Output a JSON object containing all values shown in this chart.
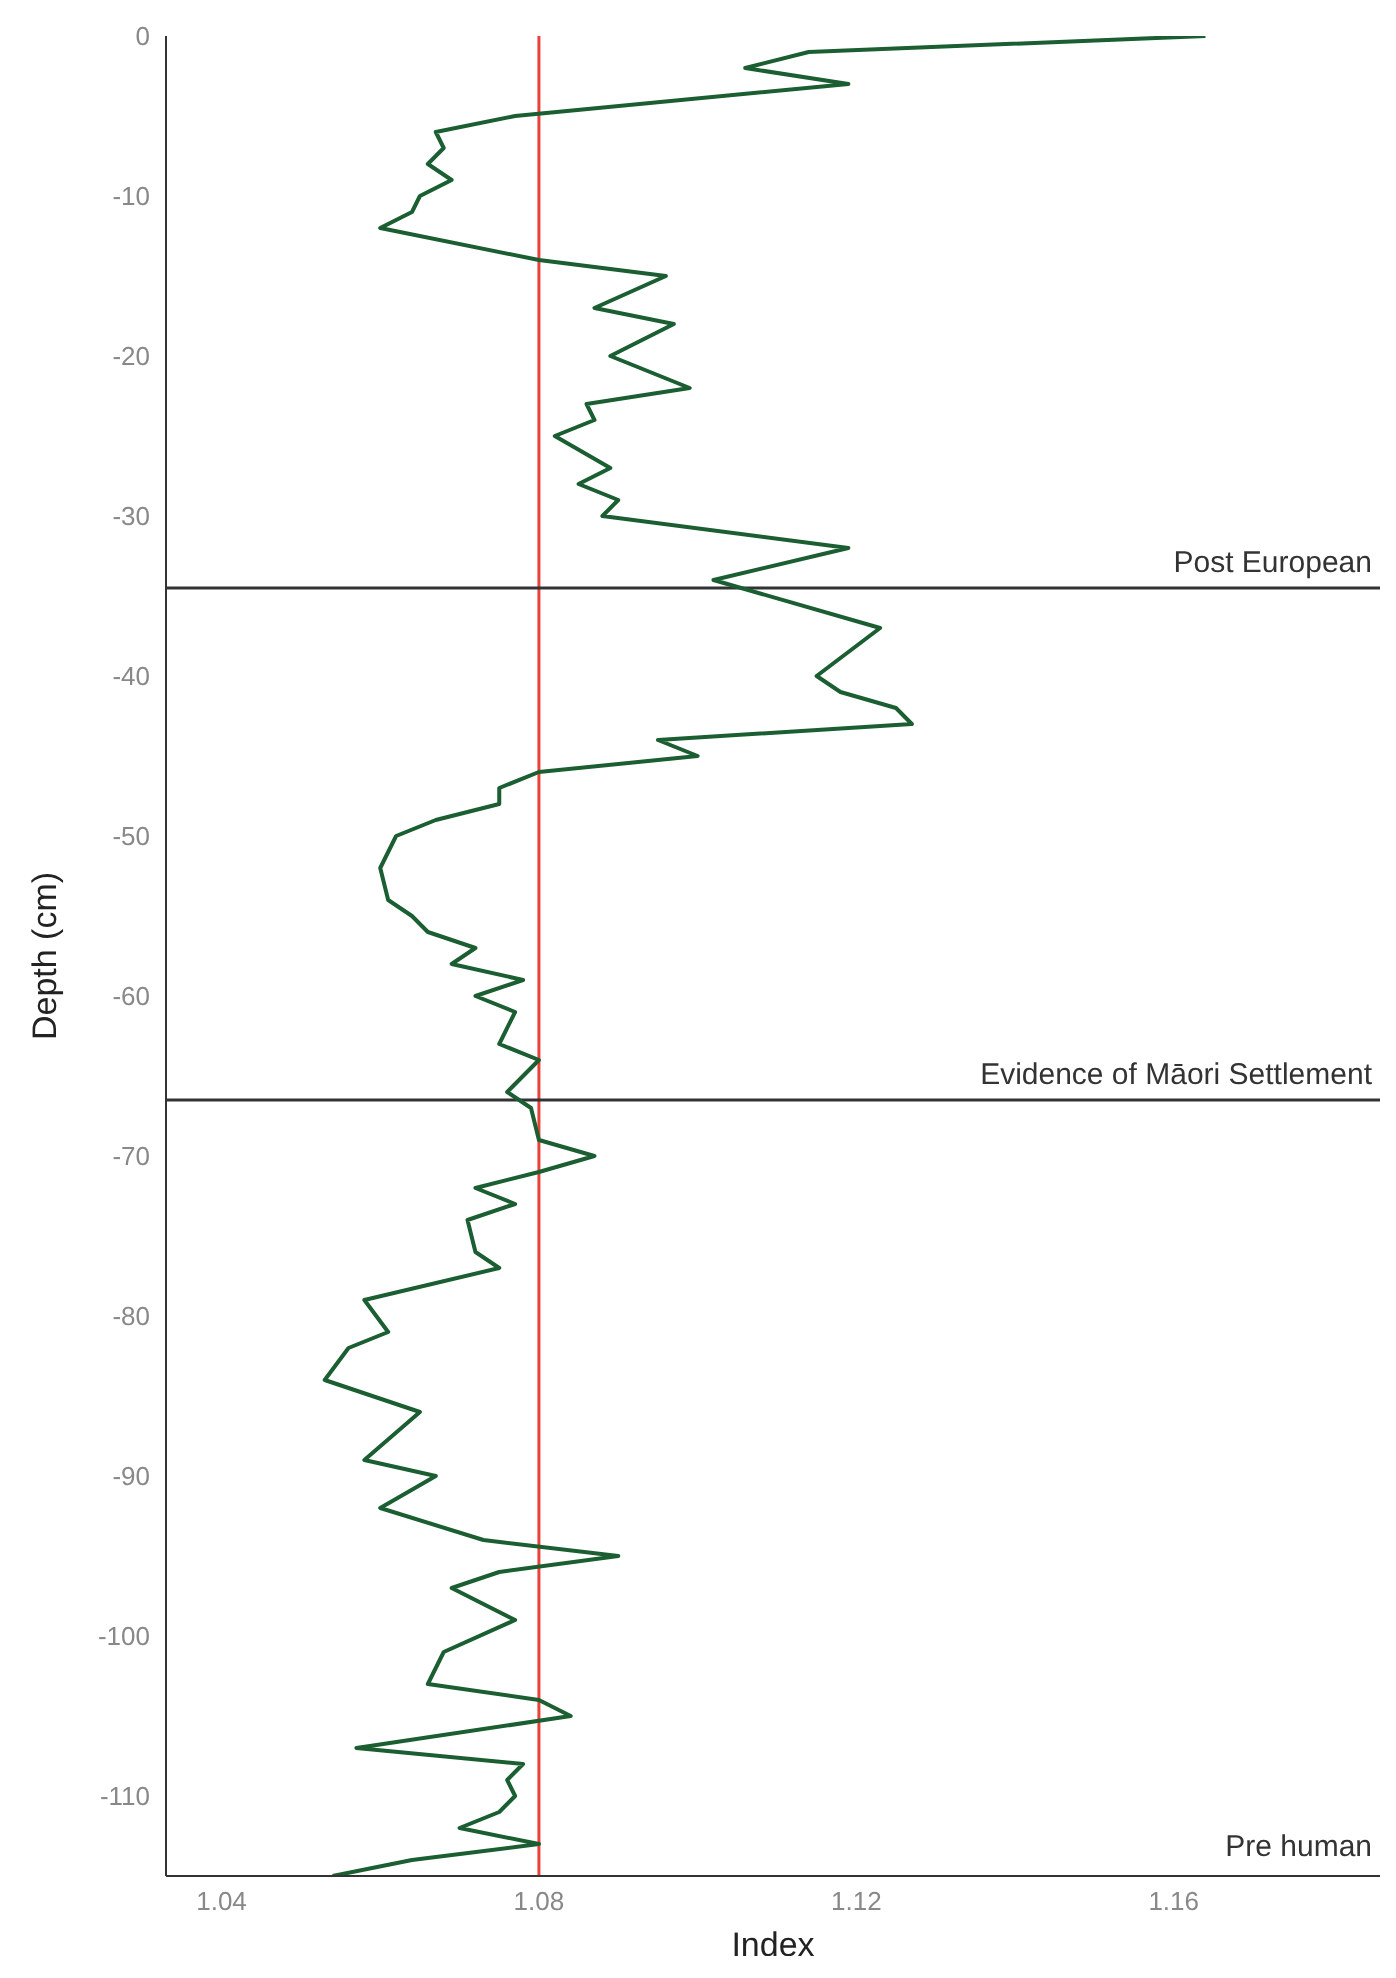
{
  "chart_data": {
    "type": "line",
    "xlabel": "Index",
    "ylabel": "Depth (cm)",
    "x": [
      1.164,
      1.114,
      1.106,
      1.119,
      1.077,
      1.067,
      1.068,
      1.066,
      1.069,
      1.065,
      1.064,
      1.06,
      1.08,
      1.096,
      1.087,
      1.097,
      1.089,
      1.099,
      1.086,
      1.087,
      1.082,
      1.089,
      1.085,
      1.09,
      1.088,
      1.119,
      1.102,
      1.123,
      1.115,
      1.118,
      1.125,
      1.127,
      1.095,
      1.1,
      1.08,
      1.075,
      1.075,
      1.067,
      1.062,
      1.06,
      1.061,
      1.064,
      1.066,
      1.072,
      1.069,
      1.078,
      1.072,
      1.077,
      1.075,
      1.08,
      1.076,
      1.079,
      1.08,
      1.087,
      1.08,
      1.072,
      1.077,
      1.071,
      1.072,
      1.075,
      1.058,
      1.061,
      1.056,
      1.053,
      1.065,
      1.058,
      1.067,
      1.06,
      1.073,
      1.09,
      1.075,
      1.069,
      1.077,
      1.068,
      1.066,
      1.08,
      1.084,
      1.057,
      1.078,
      1.076,
      1.077,
      1.075,
      1.07,
      1.08,
      1.064,
      1.054
    ],
    "series": [
      {
        "color": "#1a5e32",
        "values": [
          0,
          -1,
          -2,
          -3,
          -5,
          -6,
          -7,
          -8,
          -9,
          -10,
          -11,
          -12,
          -14,
          -15,
          -17,
          -18,
          -20,
          -22,
          -23,
          -24,
          -25,
          -27,
          -28,
          -29,
          -30,
          -32,
          -34,
          -37,
          -40,
          -41,
          -42,
          -43,
          -44,
          -45,
          -46,
          -47,
          -48,
          -49,
          -50,
          -52,
          -54,
          -55,
          -56,
          -57,
          -58,
          -59,
          -60,
          -61,
          -63,
          -64,
          -66,
          -67,
          -69,
          -70,
          -71,
          -72,
          -73,
          -74,
          -76,
          -77,
          -79,
          -81,
          -82,
          -84,
          -86,
          -89,
          -90,
          -92,
          -94,
          -95,
          -96,
          -97,
          -99,
          -101,
          -103,
          -104,
          -105,
          -107,
          -108,
          -109,
          -110,
          -111,
          -112,
          -113,
          -114,
          -115
        ]
      }
    ],
    "xlim": [
      1.033,
      1.186
    ],
    "xticks": [
      1.04,
      1.08,
      1.12,
      1.16
    ],
    "ylim": [
      -115,
      0
    ],
    "yticks": [
      0,
      -10,
      -20,
      -30,
      -40,
      -50,
      -60,
      -70,
      -80,
      -90,
      -100,
      -110
    ],
    "ref_lines": [
      {
        "axis": "x",
        "value": 1.08,
        "color": "#e8423a"
      },
      {
        "axis": "y",
        "value": -34.5,
        "label": "Post European",
        "color": "#333333"
      },
      {
        "axis": "y",
        "value": -66.5,
        "label": "Evidence of Māori Settlement",
        "color": "#333333"
      }
    ],
    "annotations": [
      "Pre human"
    ],
    "grid": false,
    "legend": false,
    "marker": "none",
    "line_style": "solid"
  }
}
